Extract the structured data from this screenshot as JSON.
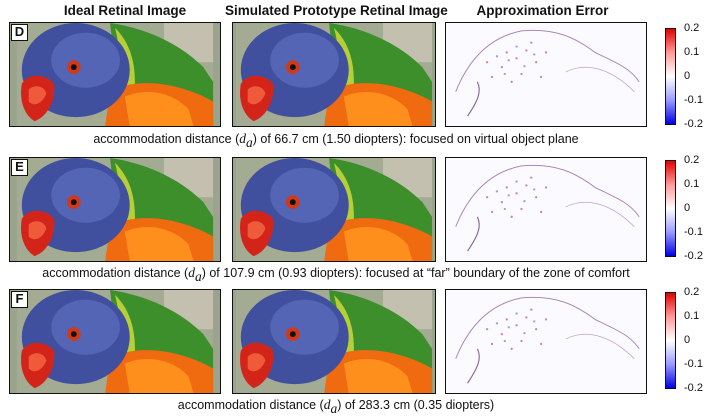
{
  "headers": {
    "ideal": "Ideal Retinal Image",
    "simulated": "Simulated Prototype Retinal Image",
    "error": "Approximation Error"
  },
  "rows": [
    {
      "label": "D",
      "caption_pre": "accommodation distance (",
      "caption_var": "d",
      "caption_sub": "a",
      "caption_post": ") of 66.7 cm (1.50 diopters): focused on virtual object plane",
      "colorbar_ticks": [
        "0.2",
        "0.1",
        "0",
        "-0.1",
        "-0.2"
      ]
    },
    {
      "label": "E",
      "caption_pre": "accommodation distance (",
      "caption_var": "d",
      "caption_sub": "a",
      "caption_post": ") of 107.9 cm (0.93 diopters): focused at “far” boundary of the zone of comfort",
      "colorbar_ticks": [
        "0.2",
        "0.1",
        "0",
        "-0.1",
        "-0.2"
      ]
    },
    {
      "label": "F",
      "caption_pre": "accommodation distance (",
      "caption_var": "d",
      "caption_sub": "a",
      "caption_post": ") of 283.3 cm (0.35 diopters)",
      "colorbar_ticks": [
        "0.2",
        "0.1",
        "0",
        "-0.1",
        "-0.2"
      ]
    }
  ],
  "colors": {
    "colorbar_max": "#e00000",
    "colorbar_mid": "#ffffff",
    "colorbar_min": "#0000e0"
  }
}
